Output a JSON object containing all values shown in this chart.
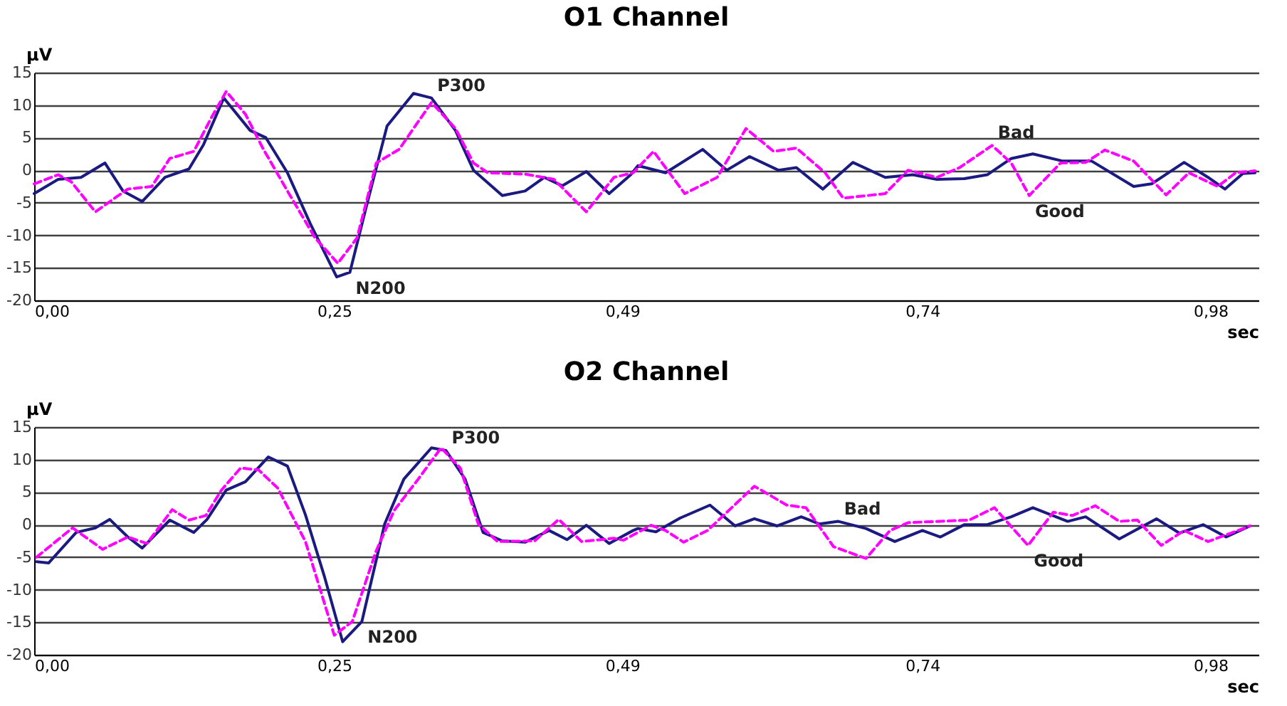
{
  "chart_data": [
    {
      "type": "line",
      "title": "O1 Channel",
      "xlabel": "sec",
      "ylabel": "μV",
      "xlim": [
        0,
        1.02
      ],
      "ylim": [
        -20,
        15
      ],
      "xticks": [
        {
          "value": 0,
          "label": "0,00"
        },
        {
          "value": 0.25,
          "label": "0,25"
        },
        {
          "value": 0.49,
          "label": "0,49"
        },
        {
          "value": 0.74,
          "label": "0,74"
        },
        {
          "value": 0.98,
          "label": "0,98"
        }
      ],
      "yticks": [
        -20,
        -15,
        -10,
        -5,
        0,
        5,
        10,
        15
      ],
      "grid": "y",
      "annotations": [
        {
          "text": "P300",
          "x": 0.331,
          "y": 11.1
        },
        {
          "text": "N200",
          "x": 0.263,
          "y": -15.7
        },
        {
          "text": "Bad",
          "x": 0.798,
          "y": 3.8
        },
        {
          "text": "Good",
          "x": 0.829,
          "y": -3.9
        }
      ],
      "series": [
        {
          "color": "#1a1a80",
          "line_style": "solid",
          "x": [
            0,
            0.02,
            0.039,
            0.059,
            0.074,
            0.09,
            0.109,
            0.129,
            0.141,
            0.158,
            0.18,
            0.193,
            0.211,
            0.23,
            0.252,
            0.263,
            0.277,
            0.294,
            0.316,
            0.331,
            0.351,
            0.366,
            0.39,
            0.409,
            0.425,
            0.44,
            0.46,
            0.479,
            0.497,
            0.503,
            0.526,
            0.557,
            0.577,
            0.596,
            0.62,
            0.635,
            0.657,
            0.682,
            0.709,
            0.732,
            0.752,
            0.775,
            0.794,
            0.814,
            0.832,
            0.857,
            0.881,
            0.916,
            0.931,
            0.958,
            0.978,
            0.992,
            1.007,
            1.017
          ],
          "values": [
            -3.6,
            -1.4,
            -1.1,
            1.1,
            -3.2,
            -4.8,
            -1.1,
            0.2,
            3.9,
            11.1,
            6.1,
            5,
            -0.4,
            -8.2,
            -16.4,
            -15.7,
            -5.4,
            6.8,
            11.8,
            11.1,
            6.1,
            0,
            -3.9,
            -3.2,
            -1.1,
            -2.4,
            -0.2,
            -3.6,
            -0.7,
            0.7,
            -0.4,
            3.2,
            0,
            2.1,
            0,
            0.4,
            -2.9,
            1.2,
            -1.1,
            -0.7,
            -1.4,
            -1.3,
            -0.7,
            1.8,
            2.5,
            1.4,
            1.4,
            -2.5,
            -2.1,
            1.2,
            -1.1,
            -2.9,
            -0.5,
            -0.4
          ]
        },
        {
          "color": "#ff00ff",
          "line_style": "dashed",
          "x": [
            0,
            0.02,
            0.031,
            0.051,
            0.067,
            0.078,
            0.098,
            0.113,
            0.133,
            0.148,
            0.16,
            0.176,
            0.191,
            0.211,
            0.234,
            0.253,
            0.269,
            0.285,
            0.304,
            0.331,
            0.351,
            0.366,
            0.378,
            0.409,
            0.433,
            0.46,
            0.483,
            0.499,
            0.516,
            0.542,
            0.569,
            0.593,
            0.616,
            0.635,
            0.659,
            0.674,
            0.709,
            0.728,
            0.752,
            0.771,
            0.798,
            0.814,
            0.829,
            0.855,
            0.876,
            0.892,
            0.916,
            0.943,
            0.962,
            0.986,
            1.001,
            1.017
          ],
          "values": [
            -2.1,
            -0.7,
            -1.8,
            -6.4,
            -4.3,
            -2.9,
            -2.5,
            1.8,
            2.9,
            8.2,
            12.1,
            8.6,
            3.2,
            -3.2,
            -10.4,
            -14.3,
            -10.4,
            1.1,
            3.2,
            10.4,
            6.4,
            1.1,
            -0.4,
            -0.6,
            -1.4,
            -6.4,
            -1.1,
            -0.4,
            2.9,
            -3.6,
            -1.1,
            6.4,
            2.9,
            3.4,
            -0.4,
            -4.3,
            -3.6,
            0,
            -1.1,
            0.4,
            3.8,
            1.1,
            -3.9,
            1.1,
            1.2,
            3.1,
            1.4,
            -3.8,
            -0.4,
            -2.5,
            -0.4,
            -0.1
          ]
        }
      ]
    },
    {
      "type": "line",
      "title": "O2 Channel",
      "xlabel": "sec",
      "ylabel": "μV",
      "xlim": [
        0,
        1.02
      ],
      "ylim": [
        -20,
        15
      ],
      "xticks": [
        {
          "value": 0,
          "label": "0,00"
        },
        {
          "value": 0.25,
          "label": "0,25"
        },
        {
          "value": 0.49,
          "label": "0,49"
        },
        {
          "value": 0.74,
          "label": "0,74"
        },
        {
          "value": 0.98,
          "label": "0,98"
        }
      ],
      "yticks": [
        -20,
        -15,
        -10,
        -5,
        0,
        5,
        10,
        15
      ],
      "grid": "y",
      "annotations": [
        {
          "text": "P300",
          "x": 0.343,
          "y": 11.4
        },
        {
          "text": "N200",
          "x": 0.273,
          "y": -14.9
        },
        {
          "text": "Bad",
          "x": 0.67,
          "y": 0.5
        },
        {
          "text": "Good",
          "x": 0.828,
          "y": -3.2
        }
      ],
      "series": [
        {
          "color": "#1a1a80",
          "line_style": "solid",
          "x": [
            0.002,
            0.012,
            0.035,
            0.051,
            0.063,
            0.078,
            0.09,
            0.113,
            0.133,
            0.144,
            0.16,
            0.176,
            0.195,
            0.211,
            0.226,
            0.242,
            0.257,
            0.273,
            0.292,
            0.308,
            0.331,
            0.343,
            0.359,
            0.374,
            0.39,
            0.409,
            0.429,
            0.444,
            0.46,
            0.479,
            0.499,
            0.503,
            0.518,
            0.538,
            0.563,
            0.584,
            0.6,
            0.619,
            0.639,
            0.654,
            0.67,
            0.693,
            0.717,
            0.74,
            0.755,
            0.775,
            0.794,
            0.814,
            0.832,
            0.861,
            0.876,
            0.904,
            0.935,
            0.954,
            0.974,
            0.993,
            1.013
          ],
          "values": [
            -5.7,
            -5.9,
            -1.2,
            -0.5,
            0.8,
            -1.9,
            -3.6,
            0.7,
            -1.2,
            0.8,
            5.3,
            6.6,
            10.4,
            9,
            1.5,
            -8.1,
            -18,
            -14.9,
            0.1,
            7,
            11.8,
            11.4,
            7,
            -1.2,
            -2.5,
            -2.7,
            -0.9,
            -2.3,
            -0.1,
            -2.9,
            -0.9,
            -0.6,
            -1.1,
            1,
            3,
            -0.2,
            0.9,
            -0.2,
            1.2,
            0.1,
            0.5,
            -0.6,
            -2.6,
            -0.9,
            -1.9,
            0,
            0,
            1.2,
            2.6,
            0.5,
            1.2,
            -2.2,
            0.9,
            -1.3,
            0,
            -1.9,
            -0.2
          ]
        },
        {
          "color": "#ff00ff",
          "line_style": "dashed",
          "x": [
            0.002,
            0.032,
            0.057,
            0.078,
            0.094,
            0.115,
            0.129,
            0.143,
            0.156,
            0.172,
            0.187,
            0.203,
            0.226,
            0.25,
            0.265,
            0.285,
            0.3,
            0.32,
            0.339,
            0.355,
            0.37,
            0.386,
            0.417,
            0.437,
            0.456,
            0.483,
            0.491,
            0.514,
            0.526,
            0.541,
            0.561,
            0.6,
            0.627,
            0.643,
            0.666,
            0.693,
            0.713,
            0.728,
            0.779,
            0.8,
            0.828,
            0.849,
            0.865,
            0.884,
            0.904,
            0.919,
            0.939,
            0.958,
            0.978,
            0.997,
            1.013
          ],
          "values": [
            -5,
            -0.5,
            -3.8,
            -1.9,
            -2.9,
            2.3,
            0.7,
            1.4,
            5.3,
            8.7,
            8.4,
            5.6,
            -2.6,
            -17,
            -14.9,
            -4,
            2.2,
            7,
            11.8,
            8.7,
            0.1,
            -2.6,
            -2.5,
            0.8,
            -2.6,
            -2.1,
            -2.4,
            -0.1,
            -0.9,
            -2.7,
            -0.9,
            5.9,
            3,
            2.6,
            -3.4,
            -5.2,
            -0.9,
            0.3,
            0.7,
            2.6,
            -3.2,
            1.9,
            1.4,
            2.9,
            0.5,
            0.7,
            -3.2,
            -0.9,
            -2.6,
            -1.3,
            -0.2
          ]
        }
      ]
    }
  ]
}
